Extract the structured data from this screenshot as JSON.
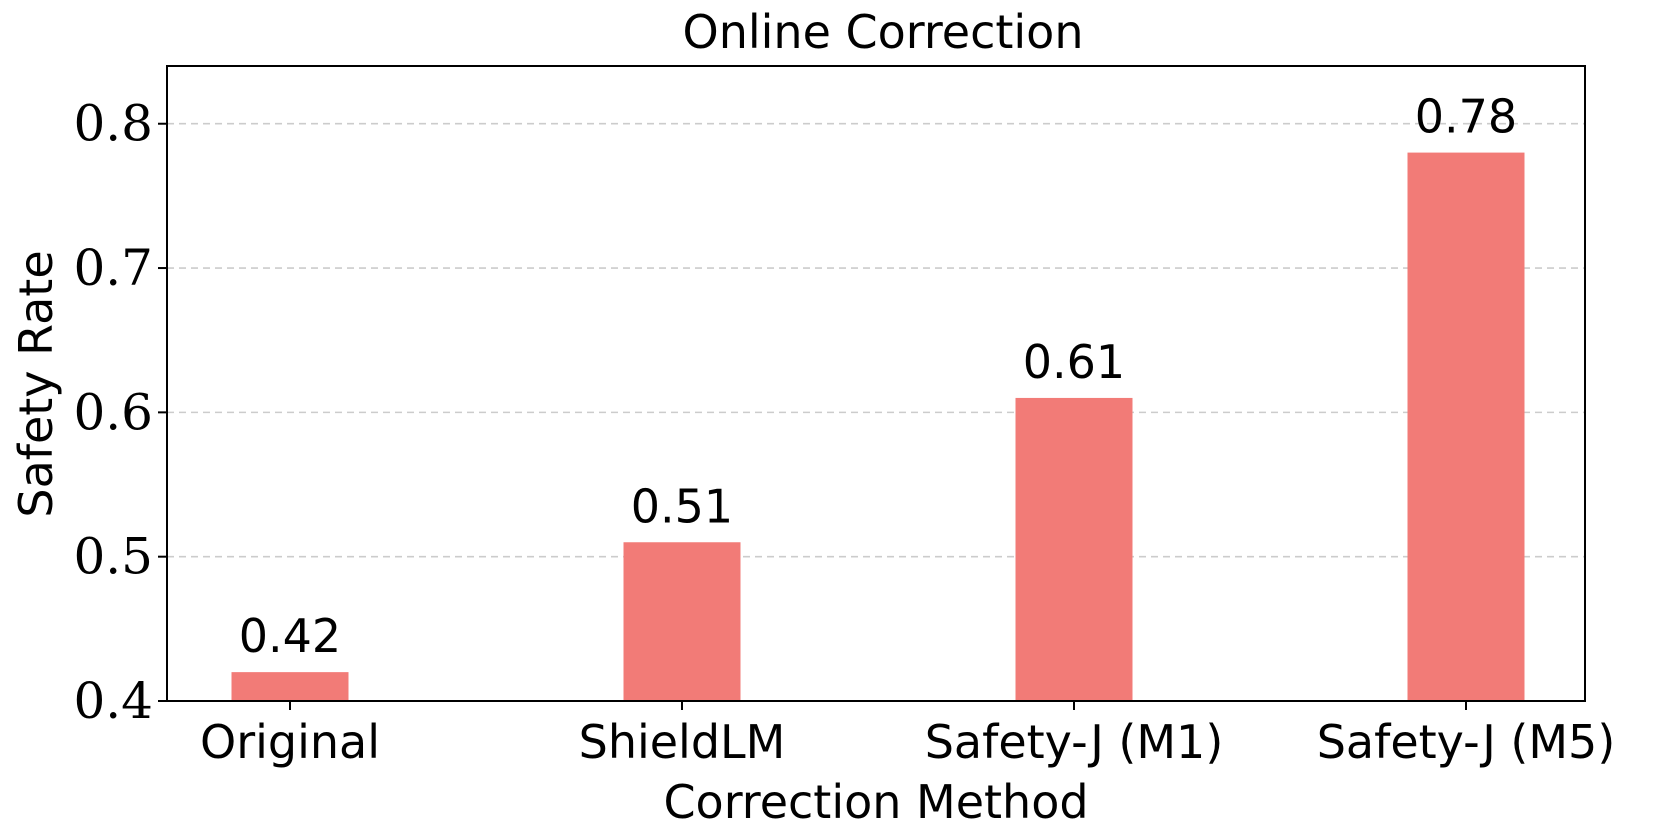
{
  "chart_data": {
    "type": "bar",
    "title": "Online Correction",
    "xlabel": "Correction Method",
    "ylabel": "Safety Rate",
    "categories": [
      "Original",
      "ShieldLM",
      "Safety-J (M1)",
      "Safety-J (M5)"
    ],
    "values": [
      0.42,
      0.51,
      0.61,
      0.78
    ],
    "value_labels": [
      "0.42",
      "0.51",
      "0.61",
      "0.78"
    ],
    "ylim": [
      0.4,
      0.84
    ],
    "yticks": [
      0.4,
      0.5,
      0.6,
      0.7,
      0.8
    ],
    "ytick_labels": [
      "0.4",
      "0.5",
      "0.6",
      "0.7",
      "0.8"
    ],
    "grid": "horizontal dashed",
    "bar_color": "#f27b77",
    "grid_color": "#cccccc",
    "axis_color": "#000000"
  }
}
